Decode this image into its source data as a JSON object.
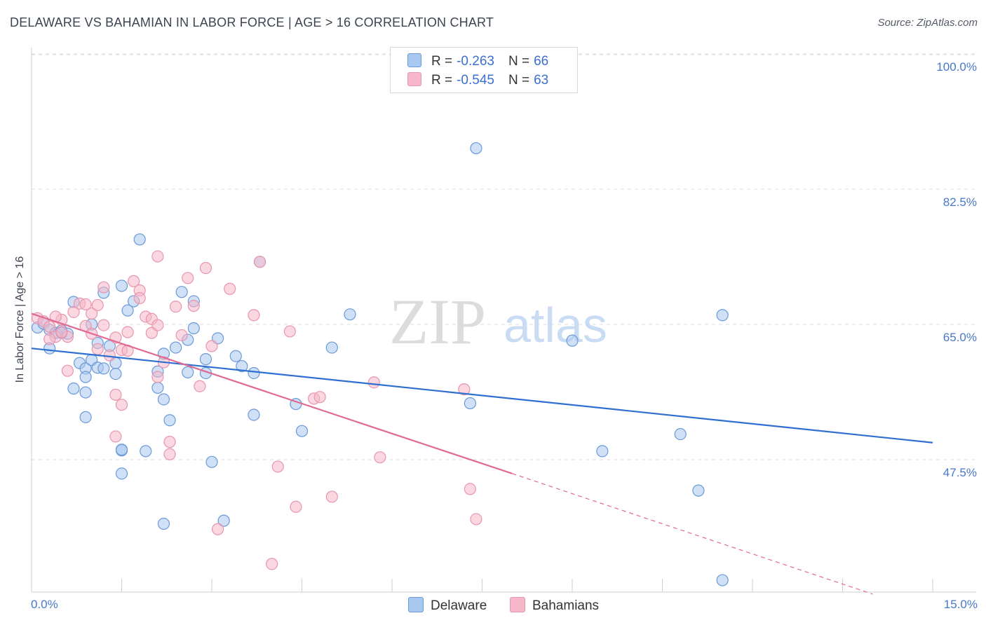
{
  "title": "DELAWARE VS BAHAMIAN IN LABOR FORCE | AGE > 16 CORRELATION CHART",
  "source": "Source: ZipAtlas.com",
  "colors": {
    "delaware_fill": "#a9c8f0",
    "delaware_stroke": "#6a9ad8",
    "delaware_line": "#2f6fd0",
    "bahamian_fill": "#f5b7c9",
    "bahamian_stroke": "#e895ad",
    "bahamian_line": "#e06a93",
    "tick_text": "#4a78c8",
    "grid": "#dddddd"
  },
  "legend": {
    "rows": [
      {
        "r_label": "R =",
        "r_value": "-0.263",
        "n_label": "N =",
        "n_value": "66",
        "color": "#a9c8f0"
      },
      {
        "r_label": "R =",
        "r_value": "-0.545",
        "n_label": "N =",
        "n_value": "63",
        "color": "#f5b7c9"
      }
    ],
    "bottom": [
      {
        "label": "Delaware",
        "color": "#a9c8f0"
      },
      {
        "label": "Bahamians",
        "color": "#f5b7c9"
      }
    ]
  },
  "watermark": {
    "zip": "ZIP",
    "atlas": "atlas"
  },
  "chart_data": {
    "type": "scatter",
    "title": "DELAWARE VS BAHAMIAN IN LABOR FORCE | AGE > 16 CORRELATION CHART",
    "xlabel": "",
    "ylabel": "In Labor Force | Age > 16",
    "xlim": [
      0,
      15
    ],
    "ylim": [
      31.5,
      102
    ],
    "x_tick_labels": [
      "0.0%",
      "15.0%"
    ],
    "y_ticks": [
      47.5,
      65.0,
      82.5,
      100.0
    ],
    "y_tick_labels": [
      "47.5%",
      "65.0%",
      "82.5%",
      "100.0%"
    ],
    "grid": true,
    "legend_position": "top-center",
    "series": [
      {
        "name": "Delaware",
        "r": -0.263,
        "n": 66,
        "trend": {
          "x": [
            0.0,
            15.0
          ],
          "y": [
            61.9,
            49.7
          ]
        },
        "points": [
          [
            0.1,
            64.6
          ],
          [
            0.2,
            65.1
          ],
          [
            0.3,
            64.3
          ],
          [
            0.4,
            63.9
          ],
          [
            0.5,
            64.2
          ],
          [
            0.3,
            61.9
          ],
          [
            0.6,
            63.8
          ],
          [
            0.7,
            67.9
          ],
          [
            0.8,
            60.0
          ],
          [
            0.9,
            59.3
          ],
          [
            1.0,
            60.4
          ],
          [
            1.1,
            59.4
          ],
          [
            0.7,
            56.7
          ],
          [
            0.9,
            56.2
          ],
          [
            0.9,
            58.2
          ],
          [
            0.9,
            53.0
          ],
          [
            1.1,
            62.6
          ],
          [
            1.2,
            59.3
          ],
          [
            1.2,
            69.1
          ],
          [
            1.3,
            62.2
          ],
          [
            1.4,
            60.0
          ],
          [
            1.4,
            58.6
          ],
          [
            1.6,
            66.8
          ],
          [
            1.7,
            68.0
          ],
          [
            1.5,
            70.0
          ],
          [
            1.8,
            76.0
          ],
          [
            1.5,
            48.7
          ],
          [
            1.5,
            45.7
          ],
          [
            1.9,
            48.6
          ],
          [
            2.1,
            56.8
          ],
          [
            2.1,
            58.9
          ],
          [
            2.2,
            55.3
          ],
          [
            2.2,
            61.2
          ],
          [
            2.3,
            52.6
          ],
          [
            2.4,
            62.0
          ],
          [
            2.5,
            69.2
          ],
          [
            2.6,
            58.8
          ],
          [
            2.6,
            63.0
          ],
          [
            2.7,
            68.0
          ],
          [
            2.7,
            64.5
          ],
          [
            2.9,
            58.7
          ],
          [
            2.9,
            60.5
          ],
          [
            3.0,
            47.2
          ],
          [
            3.1,
            63.2
          ],
          [
            3.4,
            60.9
          ],
          [
            3.5,
            59.6
          ],
          [
            3.7,
            58.7
          ],
          [
            3.8,
            73.1
          ],
          [
            3.7,
            53.3
          ],
          [
            4.4,
            54.7
          ],
          [
            4.5,
            51.2
          ],
          [
            5.0,
            62.0
          ],
          [
            5.3,
            66.3
          ],
          [
            7.4,
            87.8
          ],
          [
            7.3,
            54.8
          ],
          [
            9.0,
            62.9
          ],
          [
            9.5,
            48.6
          ],
          [
            10.8,
            50.8
          ],
          [
            11.1,
            43.5
          ],
          [
            11.5,
            66.2
          ],
          [
            11.5,
            31.9
          ],
          [
            2.2,
            39.2
          ],
          [
            3.2,
            39.6
          ],
          [
            1.5,
            48.8
          ],
          [
            0.5,
            63.9
          ],
          [
            1.0,
            65.0
          ]
        ]
      },
      {
        "name": "Bahamians",
        "r": -0.545,
        "n": 63,
        "trend": {
          "x": [
            0.0,
            8.0
          ],
          "y": [
            66.4,
            45.7
          ]
        },
        "trend_dashed": {
          "x": [
            8.0,
            14.0
          ],
          "y": [
            45.7,
            30.1
          ]
        },
        "points": [
          [
            0.1,
            65.8
          ],
          [
            0.2,
            65.4
          ],
          [
            0.3,
            64.7
          ],
          [
            0.4,
            63.4
          ],
          [
            0.5,
            65.6
          ],
          [
            0.6,
            63.4
          ],
          [
            0.7,
            66.6
          ],
          [
            0.8,
            67.7
          ],
          [
            0.9,
            64.8
          ],
          [
            1.0,
            66.4
          ],
          [
            1.1,
            61.8
          ],
          [
            1.0,
            63.8
          ],
          [
            1.1,
            67.5
          ],
          [
            1.2,
            69.8
          ],
          [
            1.3,
            61.0
          ],
          [
            1.4,
            63.3
          ],
          [
            1.4,
            55.9
          ],
          [
            1.5,
            54.6
          ],
          [
            1.4,
            50.5
          ],
          [
            1.5,
            61.7
          ],
          [
            1.6,
            64.0
          ],
          [
            1.6,
            61.6
          ],
          [
            1.7,
            70.6
          ],
          [
            1.8,
            69.4
          ],
          [
            1.9,
            66.0
          ],
          [
            2.0,
            63.9
          ],
          [
            2.0,
            65.7
          ],
          [
            2.1,
            64.9
          ],
          [
            2.1,
            73.8
          ],
          [
            2.2,
            60.1
          ],
          [
            2.3,
            49.8
          ],
          [
            2.3,
            48.2
          ],
          [
            2.4,
            67.3
          ],
          [
            2.5,
            63.6
          ],
          [
            2.6,
            71.0
          ],
          [
            2.7,
            67.4
          ],
          [
            2.8,
            57.0
          ],
          [
            2.9,
            72.3
          ],
          [
            3.0,
            62.2
          ],
          [
            3.1,
            38.5
          ],
          [
            3.3,
            69.6
          ],
          [
            3.7,
            66.2
          ],
          [
            3.8,
            73.1
          ],
          [
            4.0,
            34.0
          ],
          [
            4.1,
            46.6
          ],
          [
            4.3,
            64.1
          ],
          [
            4.4,
            41.4
          ],
          [
            4.7,
            55.4
          ],
          [
            4.8,
            55.6
          ],
          [
            5.0,
            42.7
          ],
          [
            5.7,
            57.5
          ],
          [
            5.8,
            47.8
          ],
          [
            7.2,
            56.6
          ],
          [
            7.3,
            43.7
          ],
          [
            7.4,
            39.8
          ],
          [
            0.3,
            63.1
          ],
          [
            0.5,
            64.0
          ],
          [
            0.6,
            59.0
          ],
          [
            0.9,
            67.6
          ],
          [
            1.2,
            64.9
          ],
          [
            1.8,
            68.4
          ],
          [
            2.1,
            58.2
          ],
          [
            0.4,
            66.0
          ]
        ]
      }
    ]
  }
}
